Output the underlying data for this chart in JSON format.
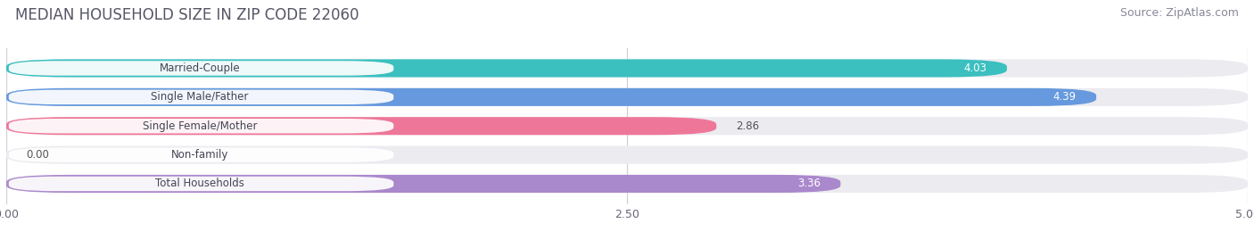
{
  "title": "MEDIAN HOUSEHOLD SIZE IN ZIP CODE 22060",
  "source": "Source: ZipAtlas.com",
  "categories": [
    "Married-Couple",
    "Single Male/Father",
    "Single Female/Mother",
    "Non-family",
    "Total Households"
  ],
  "values": [
    4.03,
    4.39,
    2.86,
    0.0,
    3.36
  ],
  "bar_colors": [
    "#3bbfbf",
    "#6699dd",
    "#ee7799",
    "#f5c891",
    "#aa88cc"
  ],
  "value_label_colors": [
    "#ffffff",
    "#ffffff",
    "#555555",
    "#555555",
    "#ffffff"
  ],
  "xlim": [
    0,
    5.0
  ],
  "xticks": [
    0.0,
    2.5,
    5.0
  ],
  "xtick_labels": [
    "0.00",
    "2.50",
    "5.00"
  ],
  "title_fontsize": 12,
  "source_fontsize": 9,
  "bar_height": 0.62,
  "fig_background_color": "#ffffff",
  "plot_background_color": "#ffffff",
  "bar_background_color": "#ebebf0",
  "grid_color": "#d0d0da",
  "title_color": "#555566",
  "source_color": "#888899",
  "label_bg_color": "#ffffff",
  "label_text_color": "#444455",
  "value_inside_threshold": 0.6
}
